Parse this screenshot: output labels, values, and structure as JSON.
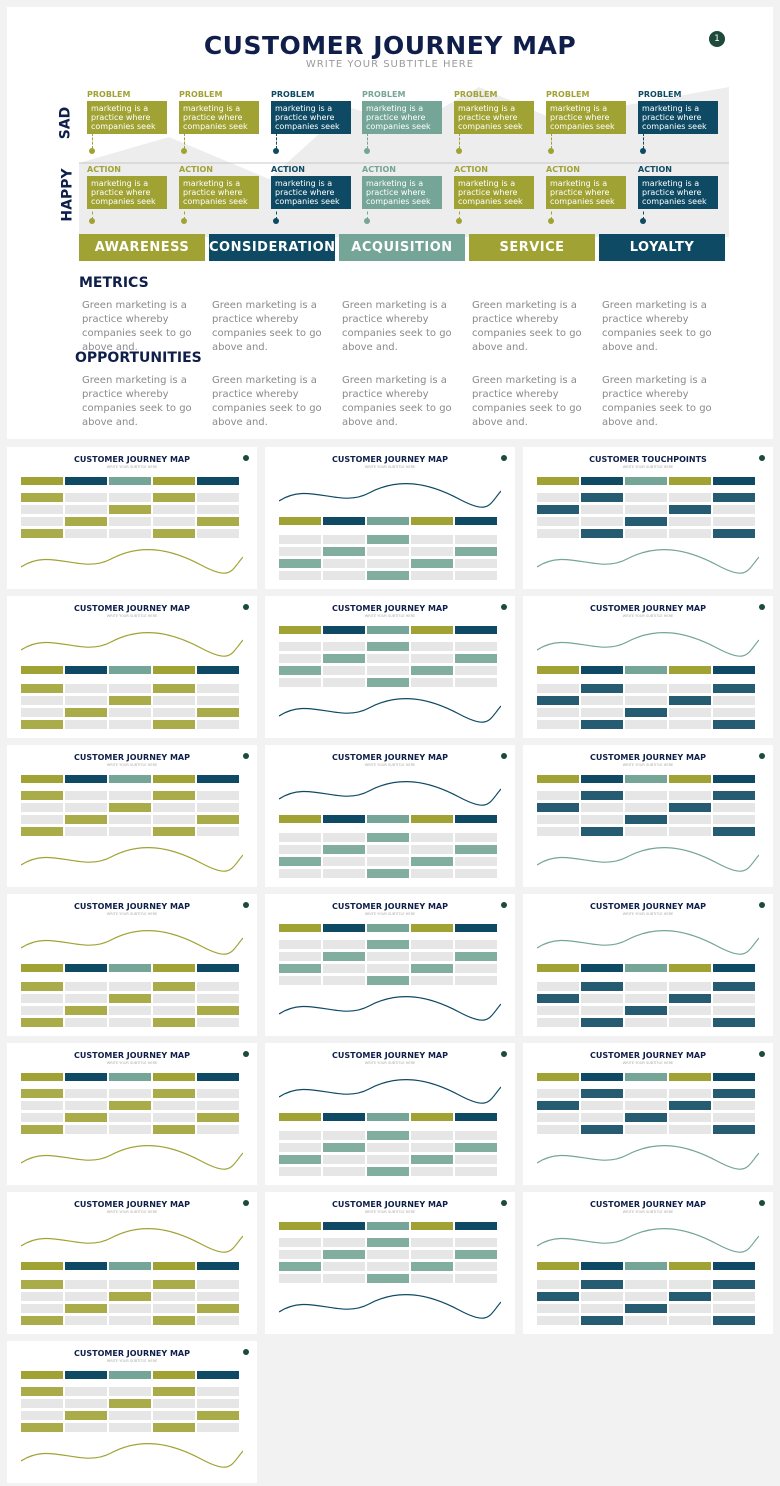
{
  "hero": {
    "title": "CUSTOMER JOURNEY MAP",
    "subtitle": "WRITE YOUR SUBTITLE HERE",
    "page_number": "1",
    "mood_top": "SAD",
    "mood_bottom": "HAPPY",
    "problem_label": "PROBLEM",
    "action_label": "ACTION",
    "box_text": "marketing is a practice where companies seek",
    "stages": [
      "AWARENESS",
      "CONSIDERATION",
      "ACQUISITION",
      "SERVICE",
      "LOYALTY"
    ],
    "metrics_title": "METRICS",
    "opportunities_title": "OPPORTUNITIES",
    "body_text": "Green marketing is a practice whereby companies seek to go above and."
  },
  "colors": {
    "olive": "#a0a334",
    "navy": "#0e4a63",
    "sage": "#74a596",
    "title": "#0f1f4a"
  },
  "columns": [
    "olive",
    "olive",
    "navy",
    "sage",
    "olive",
    "olive",
    "navy"
  ],
  "thumbnails": [
    {
      "title": "CUSTOMER JOURNEY MAP"
    },
    {
      "title": "CUSTOMER JOURNEY MAP"
    },
    {
      "title": "CUSTOMER TOUCHPOINTS"
    },
    {
      "title": "CUSTOMER JOURNEY MAP"
    },
    {
      "title": "CUSTOMER JOURNEY MAP"
    },
    {
      "title": "CUSTOMER JOURNEY MAP"
    },
    {
      "title": "CUSTOMER JOURNEY MAP"
    },
    {
      "title": "CUSTOMER JOURNEY MAP"
    },
    {
      "title": "CUSTOMER JOURNEY MAP"
    },
    {
      "title": "CUSTOMER JOURNEY MAP"
    },
    {
      "title": "CUSTOMER JOURNEY MAP"
    },
    {
      "title": "CUSTOMER JOURNEY MAP"
    },
    {
      "title": "CUSTOMER JOURNEY MAP"
    },
    {
      "title": "CUSTOMER JOURNEY MAP"
    },
    {
      "title": "CUSTOMER JOURNEY MAP"
    },
    {
      "title": "CUSTOMER JOURNEY MAP"
    },
    {
      "title": "CUSTOMER JOURNEY MAP"
    },
    {
      "title": "CUSTOMER JOURNEY MAP"
    },
    {
      "title": "CUSTOMER JOURNEY MAP"
    }
  ]
}
